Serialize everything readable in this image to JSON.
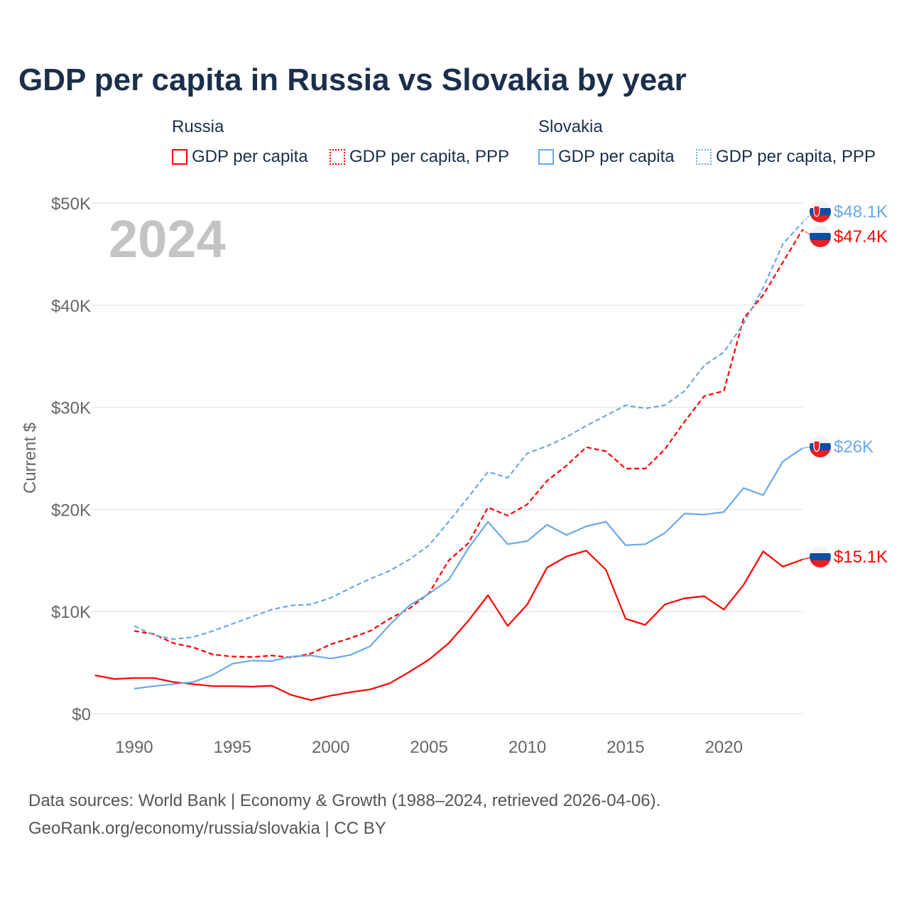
{
  "title": "GDP per capita in Russia vs Slovakia by year",
  "legend": {
    "groups": [
      {
        "name": "Russia",
        "items": [
          "GDP per capita",
          "GDP per capita, PPP"
        ]
      },
      {
        "name": "Slovakia",
        "items": [
          "GDP per capita",
          "GDP per capita, PPP"
        ]
      }
    ]
  },
  "year_label": "2024",
  "footer": {
    "line1": "Data sources: World Bank | Economy & Growth (1988–2024, retrieved 2026-04-06).",
    "line2": "GeoRank.org/economy/russia/slovakia | CC BY"
  },
  "colors": {
    "russia": "#ff0000",
    "slovakia": "#6aa9e9"
  },
  "chart_data": {
    "type": "line",
    "ylabel": "Current $",
    "xlim": [
      1988,
      2024
    ],
    "ylim": [
      0,
      50000
    ],
    "x_ticks": [
      "1990",
      "1995",
      "2000",
      "2005",
      "2010",
      "2015",
      "2020"
    ],
    "y_ticks": [
      "$0",
      "$10K",
      "$20K",
      "$30K",
      "$40K",
      "$50K"
    ],
    "grid": true,
    "series": [
      {
        "name": "Russia GDP per capita",
        "country": "russia",
        "dashed": false,
        "start": 1988,
        "end_label": "$15.1K",
        "values": [
          3.76,
          3.4,
          3.5,
          3.5,
          3.1,
          2.9,
          2.7,
          2.7,
          2.65,
          2.74,
          1.83,
          1.33,
          1.77,
          2.1,
          2.38,
          2.98,
          4.1,
          5.3,
          6.9,
          9.1,
          11.6,
          8.6,
          10.7,
          14.3,
          15.4,
          15.97,
          14.1,
          9.3,
          8.7,
          10.7,
          11.3,
          11.5,
          10.2,
          12.6,
          15.9,
          14.4,
          15.1
        ]
      },
      {
        "name": "Russia GDP per capita, PPP",
        "country": "russia",
        "dashed": true,
        "start": 1990,
        "end_label": "$47.4K",
        "values": [
          8.1,
          7.8,
          6.9,
          6.5,
          5.8,
          5.6,
          5.55,
          5.7,
          5.5,
          5.9,
          6.8,
          7.4,
          8.1,
          9.3,
          10.3,
          11.8,
          15.0,
          16.7,
          20.2,
          19.4,
          20.5,
          22.8,
          24.3,
          26.1,
          25.7,
          24.0,
          24.0,
          25.9,
          28.6,
          31.1,
          31.6,
          38.7,
          41.0,
          44.2,
          47.4
        ]
      },
      {
        "name": "Slovakia GDP per capita",
        "country": "slovakia",
        "dashed": false,
        "start": 1990,
        "end_label": "$26K",
        "values": [
          2.45,
          2.7,
          2.9,
          3.1,
          3.8,
          4.9,
          5.2,
          5.15,
          5.6,
          5.7,
          5.4,
          5.75,
          6.6,
          8.7,
          10.6,
          11.75,
          13.1,
          16.2,
          18.8,
          16.6,
          16.9,
          18.5,
          17.5,
          18.35,
          18.8,
          16.5,
          16.6,
          17.7,
          19.6,
          19.5,
          19.75,
          22.1,
          21.4,
          24.7,
          26.0
        ]
      },
      {
        "name": "Slovakia GDP per capita, PPP",
        "country": "slovakia",
        "dashed": true,
        "start": 1990,
        "end_label": "$48.1K",
        "values": [
          8.6,
          7.7,
          7.3,
          7.5,
          8.1,
          8.8,
          9.5,
          10.2,
          10.6,
          10.7,
          11.35,
          12.3,
          13.2,
          14.0,
          15.1,
          16.5,
          18.8,
          21.2,
          23.7,
          23.1,
          25.5,
          26.2,
          27.1,
          28.2,
          29.2,
          30.2,
          29.9,
          30.2,
          31.6,
          34.1,
          35.4,
          38.2,
          41.7,
          46.0,
          48.1
        ]
      }
    ],
    "value_unit": "thousand USD"
  }
}
